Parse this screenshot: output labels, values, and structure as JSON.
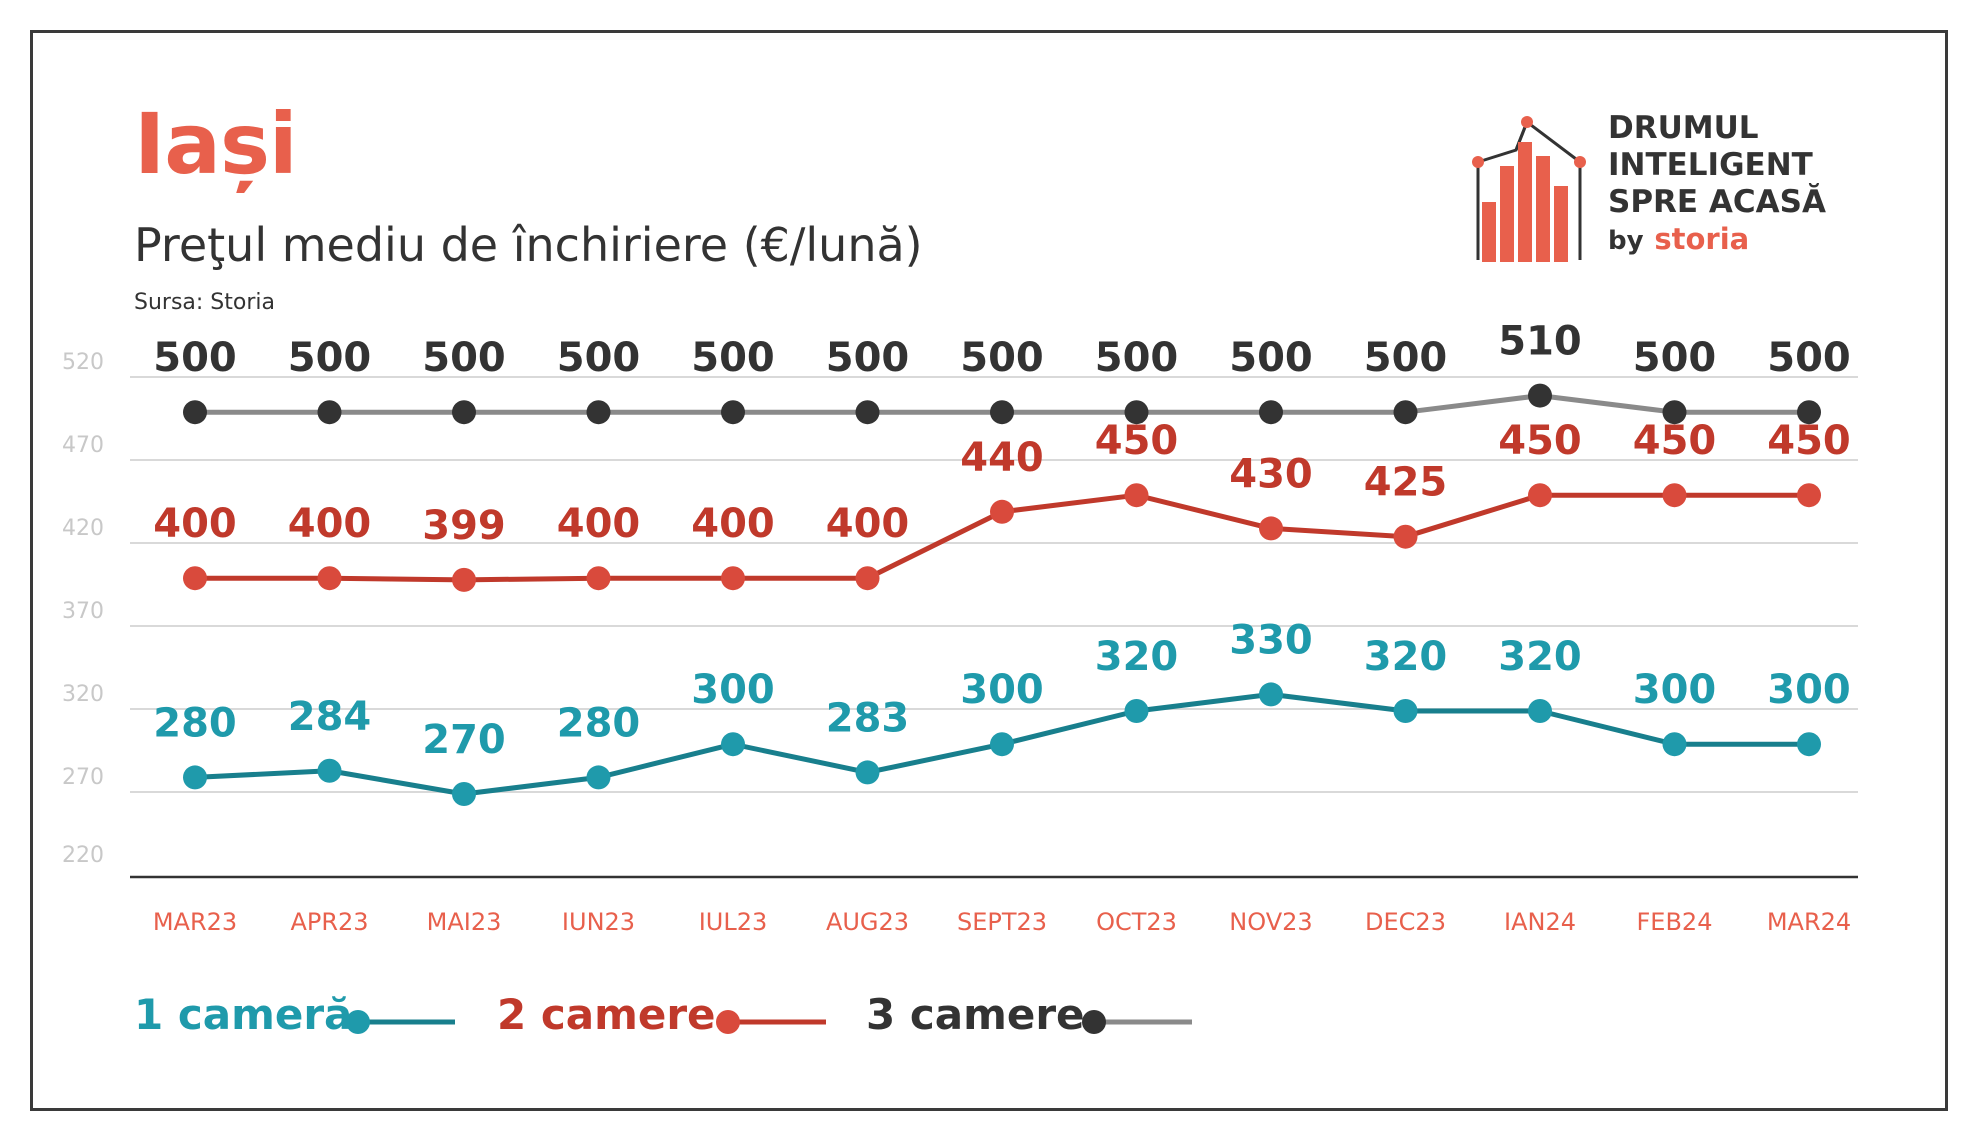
{
  "header": {
    "city": "Iași",
    "subtitle": "Preţul mediu de închiriere (€/lună)",
    "source": "Sursa: Storia"
  },
  "logo": {
    "line1": "DRUMUL",
    "line2": "INTELIGENT",
    "line3": "SPRE ACASĂ",
    "by": "by",
    "brand": "storia"
  },
  "colors": {
    "one_room": "#1f9aab",
    "one_room_line": "#187f8d",
    "two_rooms": "#c0392b",
    "two_rooms_marker": "#d94a3c",
    "three_rooms": "#333333",
    "three_rooms_line": "#8a8a8a",
    "x_labels": "#e8604c",
    "y_labels": "#c8c8c8",
    "grid": "#d9d9d9"
  },
  "chart_data": {
    "type": "line",
    "categories": [
      "MAR23",
      "APR23",
      "MAI23",
      "IUN23",
      "IUL23",
      "AUG23",
      "SEPT23",
      "OCT23",
      "NOV23",
      "DEC23",
      "IAN24",
      "FEB24",
      "MAR24"
    ],
    "y_ticks": [
      220,
      270,
      320,
      370,
      420,
      470,
      520
    ],
    "ylim": [
      220,
      520
    ],
    "grid": true,
    "legend_position": "bottom-left",
    "series": [
      {
        "name": "1 cameră",
        "values": [
          280,
          284,
          270,
          280,
          300,
          283,
          300,
          320,
          330,
          320,
          320,
          300,
          300
        ]
      },
      {
        "name": "2 camere",
        "values": [
          400,
          400,
          399,
          400,
          400,
          400,
          440,
          450,
          430,
          425,
          450,
          450,
          450
        ]
      },
      {
        "name": "3 camere",
        "values": [
          500,
          500,
          500,
          500,
          500,
          500,
          500,
          500,
          500,
          500,
          510,
          500,
          500
        ]
      }
    ]
  }
}
